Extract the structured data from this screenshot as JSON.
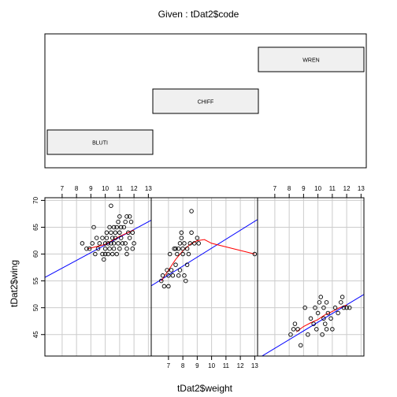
{
  "chart_data": {
    "type": "coplot",
    "title": "Given : tDat2$code",
    "xlabel": "tDat2$weight",
    "ylabel": "tDat2$wing",
    "xlim": [
      5.8,
      13.2
    ],
    "ylim": [
      41,
      70.5
    ],
    "grid": true,
    "x_ticks": [
      7,
      8,
      9,
      10,
      11,
      12,
      13
    ],
    "y_ticks": [
      45,
      50,
      55,
      60,
      65,
      70
    ],
    "given_levels": [
      "BLUTI",
      "CHIFF",
      "WREN"
    ],
    "colors": {
      "fit_line": "#0000ff",
      "smooth_line": "#ff0000",
      "points": "#000000",
      "grid": "#cccccc",
      "strip_fill": "#f0f0f0"
    },
    "panels": [
      {
        "level": "BLUTI",
        "fit": {
          "intercept": 47.3,
          "slope": 1.44
        },
        "smooth": [
          [
            8.8,
            61.0
          ],
          [
            10.0,
            61.8
          ],
          [
            11.0,
            63.3
          ],
          [
            12.0,
            64.5
          ]
        ],
        "points": [
          [
            8.4,
            62
          ],
          [
            8.7,
            61
          ],
          [
            8.9,
            61
          ],
          [
            9.1,
            62
          ],
          [
            9.2,
            65
          ],
          [
            9.3,
            60
          ],
          [
            9.4,
            63
          ],
          [
            9.5,
            61
          ],
          [
            9.6,
            62
          ],
          [
            9.8,
            60
          ],
          [
            9.8,
            63
          ],
          [
            9.9,
            59
          ],
          [
            10.0,
            62
          ],
          [
            10.0,
            60
          ],
          [
            10.0,
            61
          ],
          [
            10.1,
            63
          ],
          [
            10.1,
            64
          ],
          [
            10.2,
            62
          ],
          [
            10.2,
            60
          ],
          [
            10.3,
            65
          ],
          [
            10.3,
            61
          ],
          [
            10.4,
            69
          ],
          [
            10.4,
            64
          ],
          [
            10.4,
            62
          ],
          [
            10.5,
            63
          ],
          [
            10.5,
            60
          ],
          [
            10.6,
            65
          ],
          [
            10.6,
            62
          ],
          [
            10.6,
            61
          ],
          [
            10.7,
            64
          ],
          [
            10.7,
            63
          ],
          [
            10.8,
            60
          ],
          [
            10.8,
            65
          ],
          [
            10.9,
            66
          ],
          [
            10.9,
            62
          ],
          [
            11.0,
            64
          ],
          [
            11.0,
            61
          ],
          [
            11.0,
            67
          ],
          [
            11.1,
            65
          ],
          [
            11.1,
            63
          ],
          [
            11.2,
            62
          ],
          [
            11.3,
            65
          ],
          [
            11.4,
            66
          ],
          [
            11.4,
            62
          ],
          [
            11.5,
            67
          ],
          [
            11.5,
            61
          ],
          [
            11.5,
            60
          ],
          [
            11.6,
            64
          ],
          [
            11.7,
            67
          ],
          [
            11.7,
            63
          ],
          [
            11.8,
            66
          ],
          [
            11.9,
            61
          ],
          [
            11.9,
            64
          ],
          [
            12.0,
            62
          ]
        ]
      },
      {
        "level": "CHIFF",
        "fit": {
          "intercept": 44.4,
          "slope": 1.67
        },
        "smooth": [
          [
            6.5,
            55
          ],
          [
            7.0,
            57
          ],
          [
            7.5,
            59
          ],
          [
            8.0,
            60.6
          ],
          [
            8.5,
            61.8
          ],
          [
            9.0,
            62.5
          ],
          [
            9.5,
            62.7
          ],
          [
            10.0,
            62.0
          ],
          [
            13.0,
            60.0
          ]
        ],
        "points": [
          [
            6.5,
            55
          ],
          [
            6.6,
            56
          ],
          [
            6.7,
            54
          ],
          [
            6.9,
            57
          ],
          [
            7.0,
            56
          ],
          [
            7.0,
            54
          ],
          [
            7.1,
            60
          ],
          [
            7.2,
            57
          ],
          [
            7.3,
            56
          ],
          [
            7.4,
            61
          ],
          [
            7.5,
            61
          ],
          [
            7.5,
            58
          ],
          [
            7.6,
            60
          ],
          [
            7.7,
            56
          ],
          [
            7.7,
            61
          ],
          [
            7.8,
            57
          ],
          [
            7.8,
            62
          ],
          [
            7.9,
            63
          ],
          [
            7.9,
            64
          ],
          [
            8.0,
            60
          ],
          [
            8.0,
            61
          ],
          [
            8.1,
            62
          ],
          [
            8.1,
            56
          ],
          [
            8.2,
            55
          ],
          [
            8.3,
            58
          ],
          [
            8.3,
            61
          ],
          [
            8.4,
            60
          ],
          [
            8.5,
            62
          ],
          [
            8.6,
            64
          ],
          [
            8.6,
            68
          ],
          [
            8.8,
            62
          ],
          [
            9.0,
            63
          ],
          [
            9.1,
            62
          ],
          [
            13.0,
            60
          ]
        ]
      },
      {
        "level": "WREN",
        "fit": {
          "intercept": 31.1,
          "slope": 1.62
        },
        "smooth": [
          [
            8.5,
            45.5
          ],
          [
            9.0,
            46.5
          ],
          [
            9.5,
            47.2
          ],
          [
            10.0,
            47.8
          ],
          [
            10.5,
            48.7
          ],
          [
            11.0,
            49.3
          ],
          [
            11.5,
            50.0
          ],
          [
            12.0,
            50.5
          ]
        ],
        "points": [
          [
            8.1,
            45
          ],
          [
            8.3,
            46
          ],
          [
            8.4,
            47
          ],
          [
            8.6,
            46
          ],
          [
            8.8,
            43
          ],
          [
            9.1,
            50
          ],
          [
            9.3,
            45
          ],
          [
            9.5,
            48
          ],
          [
            9.7,
            47
          ],
          [
            9.8,
            50
          ],
          [
            9.9,
            46
          ],
          [
            10.0,
            49
          ],
          [
            10.1,
            51
          ],
          [
            10.2,
            52
          ],
          [
            10.3,
            45
          ],
          [
            10.4,
            50
          ],
          [
            10.4,
            48
          ],
          [
            10.5,
            47
          ],
          [
            10.6,
            46
          ],
          [
            10.6,
            51
          ],
          [
            10.7,
            49
          ],
          [
            10.9,
            48
          ],
          [
            11.0,
            46
          ],
          [
            11.2,
            50
          ],
          [
            11.4,
            49
          ],
          [
            11.6,
            51
          ],
          [
            11.7,
            52
          ],
          [
            11.8,
            50
          ],
          [
            12.0,
            50
          ],
          [
            12.2,
            50
          ]
        ]
      }
    ]
  }
}
